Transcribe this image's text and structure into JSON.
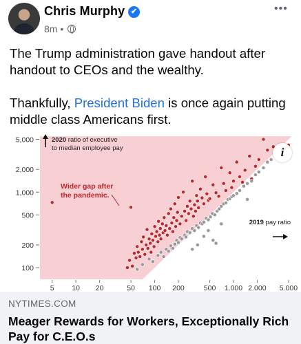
{
  "post": {
    "author": "Chris Murphy",
    "timestamp": "8m",
    "separator": "•",
    "more_label": "•••",
    "verified_glyph": "✔",
    "paragraph1": "The Trump administration gave handout after handout to CEOs and the wealthy.",
    "paragraph2_before": "Thankfully, ",
    "paragraph2_mention": "President Biden",
    "paragraph2_after": " is once again putting middle class Americans first."
  },
  "chart_data": {
    "type": "scatter",
    "title": "",
    "y_axis_title": "2020 ratio of executive to median employee pay",
    "x_axis_title": "2019 pay ratio",
    "annotation": "Wider gap after the pandemic.",
    "x_ticks": [
      "5",
      "10",
      "20",
      "50",
      "100",
      "200",
      "500",
      "1,000",
      "2,000",
      "5,000"
    ],
    "x_tick_values": [
      5,
      10,
      20,
      50,
      100,
      200,
      500,
      1000,
      2000,
      5000
    ],
    "y_ticks": [
      "5,000",
      "2,000",
      "1,000",
      "500",
      "200",
      "100"
    ],
    "y_tick_values": [
      5000,
      2000,
      1000,
      500,
      200,
      100
    ],
    "scale": "log-log",
    "xlim": [
      3.5,
      6000
    ],
    "ylim": [
      70,
      5500
    ],
    "colors": {
      "shaded_region": "#f8d0d3",
      "wider_gap": "#c0272d",
      "narrower_gap": "#9a9a9a"
    },
    "series": [
      {
        "name": "",
        "color": "#c0272d",
        "points": [
          [
            5,
            730
          ],
          [
            50,
            630
          ],
          [
            45,
            100
          ],
          [
            48,
            125
          ],
          [
            52,
            105
          ],
          [
            55,
            155
          ],
          [
            58,
            135
          ],
          [
            60,
            190
          ],
          [
            62,
            160
          ],
          [
            65,
            140
          ],
          [
            68,
            220
          ],
          [
            70,
            175
          ],
          [
            72,
            255
          ],
          [
            75,
            150
          ],
          [
            78,
            200
          ],
          [
            80,
            320
          ],
          [
            82,
            180
          ],
          [
            85,
            240
          ],
          [
            88,
            210
          ],
          [
            90,
            160
          ],
          [
            92,
            280
          ],
          [
            95,
            230
          ],
          [
            98,
            190
          ],
          [
            100,
            350
          ],
          [
            103,
            260
          ],
          [
            106,
            300
          ],
          [
            110,
            220
          ],
          [
            112,
            410
          ],
          [
            115,
            270
          ],
          [
            118,
            330
          ],
          [
            120,
            240
          ],
          [
            125,
            380
          ],
          [
            128,
            290
          ],
          [
            132,
            460
          ],
          [
            135,
            310
          ],
          [
            140,
            360
          ],
          [
            145,
            270
          ],
          [
            150,
            520
          ],
          [
            155,
            330
          ],
          [
            160,
            600
          ],
          [
            165,
            390
          ],
          [
            170,
            300
          ],
          [
            175,
            460
          ],
          [
            180,
            700
          ],
          [
            185,
            350
          ],
          [
            190,
            420
          ],
          [
            195,
            540
          ],
          [
            200,
            850
          ],
          [
            210,
            380
          ],
          [
            220,
            480
          ],
          [
            230,
            1000
          ],
          [
            240,
            560
          ],
          [
            250,
            420
          ],
          [
            260,
            650
          ],
          [
            270,
            520
          ],
          [
            280,
            760
          ],
          [
            290,
            600
          ],
          [
            300,
            1400
          ],
          [
            310,
            480
          ],
          [
            320,
            680
          ],
          [
            330,
            560
          ],
          [
            340,
            900
          ],
          [
            350,
            760
          ],
          [
            360,
            620
          ],
          [
            380,
            1100
          ],
          [
            400,
            840
          ],
          [
            420,
            700
          ],
          [
            440,
            1600
          ],
          [
            460,
            950
          ],
          [
            480,
            780
          ],
          [
            500,
            820
          ],
          [
            550,
            1250
          ],
          [
            600,
            980
          ],
          [
            650,
            880
          ],
          [
            700,
            2100
          ],
          [
            750,
            1300
          ],
          [
            800,
            1050
          ],
          [
            900,
            1800
          ],
          [
            950,
            1150
          ],
          [
            1000,
            1400
          ],
          [
            1100,
            2500
          ],
          [
            1200,
            1600
          ],
          [
            1300,
            1350
          ],
          [
            1400,
            1950
          ],
          [
            1600,
            3000
          ],
          [
            1700,
            1500
          ],
          [
            1900,
            2200
          ],
          [
            2100,
            2700
          ],
          [
            2400,
            5000
          ],
          [
            2700,
            3600
          ],
          [
            3200,
            4000
          ],
          [
            5000,
            4200
          ]
        ]
      },
      {
        "name": "",
        "color": "#9a9a9a",
        "points": [
          [
            60,
            95
          ],
          [
            70,
            110
          ],
          [
            85,
            130
          ],
          [
            95,
            120
          ],
          [
            110,
            145
          ],
          [
            120,
            160
          ],
          [
            130,
            140
          ],
          [
            140,
            175
          ],
          [
            150,
            165
          ],
          [
            160,
            195
          ],
          [
            170,
            180
          ],
          [
            180,
            205
          ],
          [
            190,
            230
          ],
          [
            200,
            215
          ],
          [
            210,
            250
          ],
          [
            220,
            240
          ],
          [
            240,
            270
          ],
          [
            250,
            255
          ],
          [
            260,
            300
          ],
          [
            280,
            290
          ],
          [
            300,
            330
          ],
          [
            320,
            310
          ],
          [
            340,
            360
          ],
          [
            360,
            340
          ],
          [
            380,
            390
          ],
          [
            400,
            380
          ],
          [
            420,
            400
          ],
          [
            450,
            450
          ],
          [
            480,
            430
          ],
          [
            510,
            470
          ],
          [
            540,
            520
          ],
          [
            580,
            500
          ],
          [
            620,
            560
          ],
          [
            660,
            600
          ],
          [
            700,
            650
          ],
          [
            750,
            700
          ],
          [
            800,
            720
          ],
          [
            850,
            800
          ],
          [
            900,
            820
          ],
          [
            950,
            870
          ],
          [
            1000,
            900
          ],
          [
            1100,
            960
          ],
          [
            1200,
            1050
          ],
          [
            1350,
            1200
          ],
          [
            1500,
            1300
          ],
          [
            1700,
            1400
          ],
          [
            1900,
            1700
          ],
          [
            2100,
            1850
          ],
          [
            2400,
            2100
          ],
          [
            2700,
            2500
          ],
          [
            3000,
            2700
          ],
          [
            3400,
            3100
          ],
          [
            300,
            175
          ],
          [
            350,
            200
          ],
          [
            420,
            260
          ],
          [
            480,
            310
          ],
          [
            550,
            230
          ],
          [
            600,
            210
          ],
          [
            700,
            380
          ],
          [
            1500,
            800
          ]
        ]
      }
    ]
  },
  "link": {
    "domain": "NYTIMES.COM",
    "headline": "Meager Rewards for Workers, Exceptionally Rich Pay for C.E.O.s"
  },
  "icons": {
    "info": "i"
  }
}
